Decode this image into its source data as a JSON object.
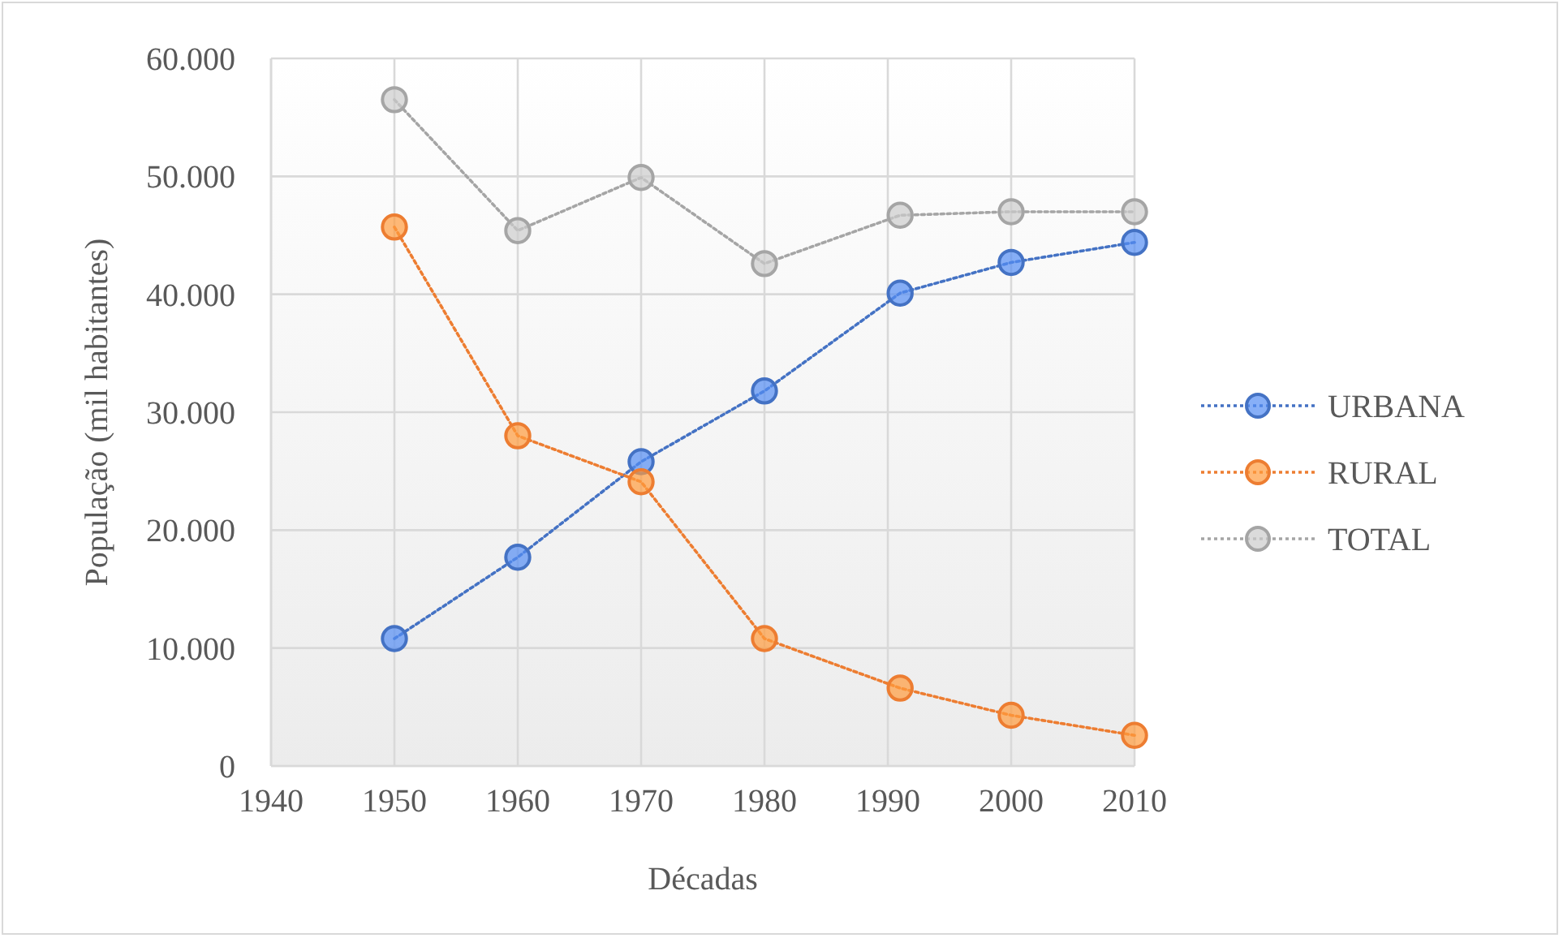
{
  "chart_data": {
    "type": "line",
    "xlabel": "Décadas",
    "ylabel": "População (mil habitantes)",
    "x": [
      1950,
      1960,
      1970,
      1980,
      1991,
      2000,
      2010
    ],
    "series": [
      {
        "name": "URBANA",
        "color": "#4472c4",
        "values": [
          10800,
          17700,
          25800,
          31800,
          40100,
          42700,
          44400
        ]
      },
      {
        "name": "RURAL",
        "color": "#ed7d31",
        "values": [
          45700,
          28000,
          24100,
          10800,
          6600,
          4300,
          2600
        ]
      },
      {
        "name": "TOTAL",
        "color": "#a5a5a5",
        "values": [
          56500,
          45400,
          49900,
          42600,
          46700,
          47000,
          47000
        ]
      }
    ],
    "xlim": [
      1940,
      2010
    ],
    "xticks": [
      1940,
      1950,
      1960,
      1970,
      1980,
      1990,
      2000,
      2010
    ],
    "ylim": [
      0,
      60000
    ],
    "yticks": [
      0,
      {
        "value": 10000,
        "label": "10.000"
      },
      {
        "value": 20000,
        "label": "20.000"
      },
      {
        "value": 30000,
        "label": "30.000"
      },
      {
        "value": 40000,
        "label": "40.000"
      },
      {
        "value": 50000,
        "label": "50.000"
      },
      {
        "value": 60000,
        "label": "60.000"
      }
    ],
    "grid": true,
    "legend": "right",
    "marker": "circle",
    "line_style": "dotted"
  }
}
